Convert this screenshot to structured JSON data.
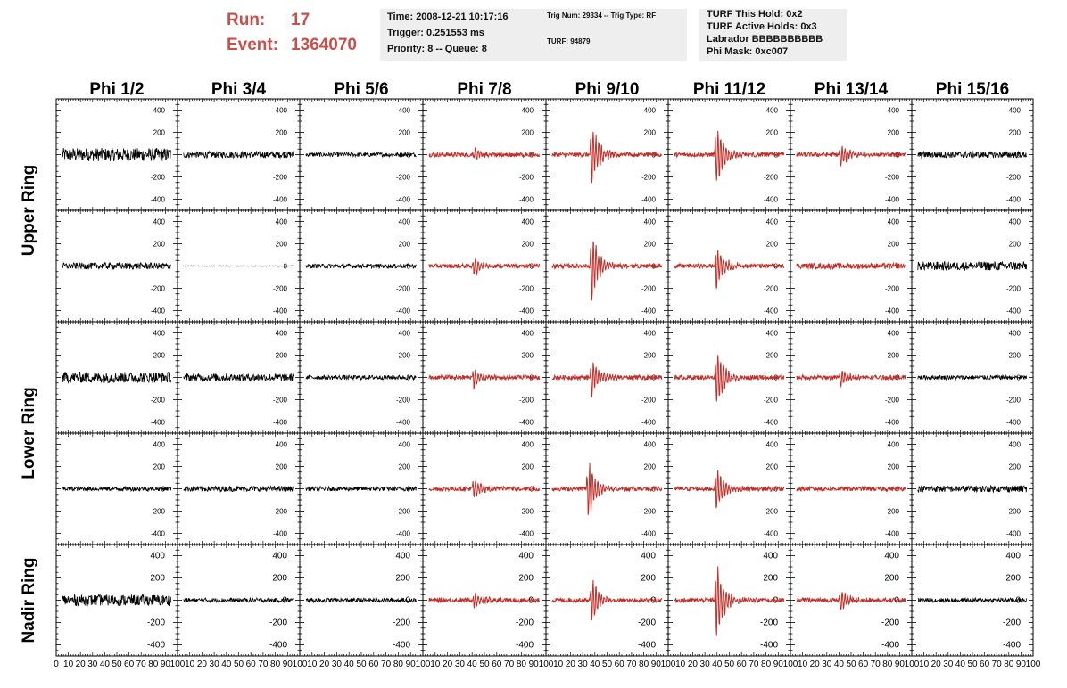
{
  "header": {
    "run_label": "Run:",
    "run_value": "17",
    "event_label": "Event:",
    "event_value": "1364070",
    "box1": {
      "time": "Time: 2008-12-21 10:17:16",
      "trigger": "Trigger: 0.251553 ms",
      "priority": "Priority: 8 -- Queue: 8"
    },
    "box2": {
      "trig": "Trig Num: 29334 -- Trig Type: RF",
      "turf": "TURF: 94879"
    },
    "box3": {
      "hold": "TURF This Hold: 0x2",
      "active": "TURF Active Holds: 0x3",
      "labrador": "Labrador BBBBBBBBBB",
      "phimask": "Phi Mask: 0xc007"
    }
  },
  "colors": {
    "header_text": "#c8504a",
    "trace_black": "#000000",
    "trace_red": "#c0302a",
    "box_bg": "#eeeeee"
  },
  "chart_data": {
    "type": "line",
    "columns": [
      "Phi 1/2",
      "Phi 3/4",
      "Phi 5/6",
      "Phi 7/8",
      "Phi 9/10",
      "Phi 11/12",
      "Phi 13/14",
      "Phi 15/16"
    ],
    "rows": [
      "Upper Ring",
      "Lower Ring",
      "Nadir Ring"
    ],
    "row_spans": [
      2,
      2,
      1
    ],
    "panel_rows": 5,
    "ylim": [
      -500,
      500
    ],
    "yticks": [
      -400,
      -200,
      0,
      200,
      400
    ],
    "xlim": [
      0,
      100
    ],
    "xticks": [
      0,
      10,
      20,
      30,
      40,
      50,
      60,
      70,
      80,
      90,
      100
    ],
    "red_columns": [
      3,
      4,
      5,
      6
    ],
    "pulse": {
      "amplitudes": [
        [
          0,
          0,
          0,
          80,
          380,
          400,
          150,
          0
        ],
        [
          0,
          0,
          0,
          140,
          430,
          270,
          0,
          0
        ],
        [
          0,
          0,
          0,
          130,
          250,
          420,
          110,
          0
        ],
        [
          0,
          0,
          0,
          140,
          400,
          300,
          0,
          0
        ],
        [
          0,
          0,
          0,
          110,
          280,
          500,
          140,
          0
        ]
      ],
      "starts": [
        [
          0,
          0,
          0,
          40,
          36,
          38,
          40,
          0
        ],
        [
          0,
          0,
          0,
          40,
          36,
          38,
          0,
          0
        ],
        [
          0,
          0,
          0,
          40,
          36,
          38,
          40,
          0
        ],
        [
          0,
          0,
          0,
          40,
          33,
          38,
          0,
          0
        ],
        [
          0,
          0,
          0,
          40,
          36,
          38,
          40,
          0
        ]
      ]
    },
    "noise": [
      [
        60,
        30,
        20,
        20,
        20,
        20,
        20,
        30
      ],
      [
        30,
        3,
        20,
        20,
        20,
        20,
        25,
        40
      ],
      [
        50,
        35,
        20,
        20,
        20,
        20,
        20,
        20
      ],
      [
        20,
        25,
        20,
        20,
        20,
        20,
        20,
        30
      ],
      [
        50,
        20,
        20,
        20,
        20,
        20,
        20,
        20
      ]
    ]
  }
}
